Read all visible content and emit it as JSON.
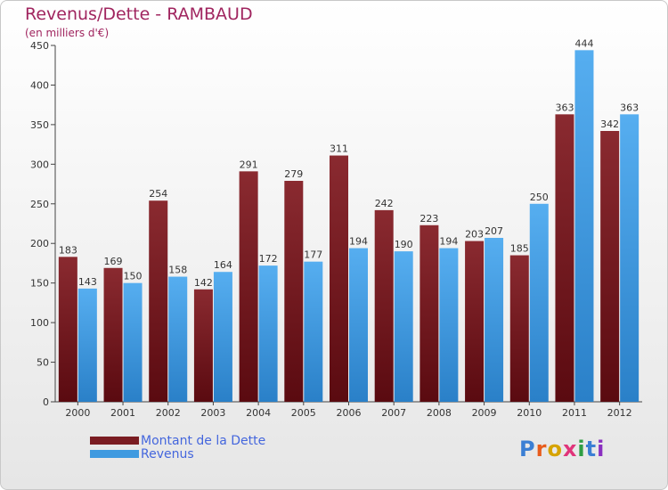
{
  "header": {
    "title": "Revenus/Dette - RAMBAUD",
    "subtitle": "(en milliers d'€)"
  },
  "logo": {
    "text": "Proxiti",
    "letter_colors": [
      "#3b7fd4",
      "#e85c1c",
      "#d6a300",
      "#e0347a",
      "#2f9e44",
      "#3b7fd4",
      "#8a2fc0"
    ]
  },
  "colors": {
    "dette": "#7a1c22",
    "revenus": "#3f9ae0",
    "title": "#a0255f",
    "legend_text": "#4466dd"
  },
  "chart_data": {
    "type": "bar",
    "categories": [
      "2000",
      "2001",
      "2002",
      "2003",
      "2004",
      "2005",
      "2006",
      "2007",
      "2008",
      "2009",
      "2010",
      "2011",
      "2012"
    ],
    "series": [
      {
        "name": "Montant de la Dette",
        "values": [
          183,
          169,
          254,
          142,
          291,
          279,
          311,
          242,
          223,
          203,
          185,
          363,
          342
        ]
      },
      {
        "name": "Revenus",
        "values": [
          143,
          150,
          158,
          164,
          172,
          177,
          194,
          190,
          194,
          207,
          250,
          444,
          363
        ]
      }
    ],
    "ylim": [
      0,
      450
    ],
    "yticks": [
      0,
      50,
      100,
      150,
      200,
      250,
      300,
      350,
      400,
      450
    ],
    "grid": false,
    "legend_position": "bottom-left",
    "data_labels": true
  }
}
